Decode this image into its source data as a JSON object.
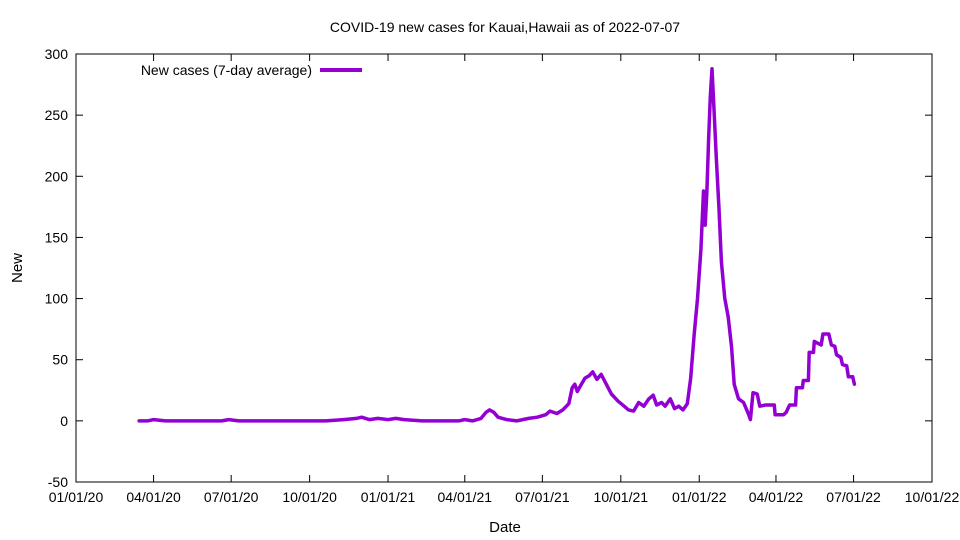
{
  "chart_data": {
    "type": "line",
    "title": "COVID-19 new cases for Kauai,Hawaii as of 2022-07-07",
    "xlabel": "Date",
    "ylabel": "New",
    "x_type": "date",
    "xlim": [
      "2020-01-01",
      "2022-10-01"
    ],
    "ylim": [
      -50,
      300
    ],
    "y_ticks": [
      -50,
      0,
      50,
      100,
      150,
      200,
      250,
      300
    ],
    "x_ticks": [
      {
        "date": "2020-01-01",
        "label": "01/01/20"
      },
      {
        "date": "2020-04-01",
        "label": "04/01/20"
      },
      {
        "date": "2020-07-01",
        "label": "07/01/20"
      },
      {
        "date": "2020-10-01",
        "label": "10/01/20"
      },
      {
        "date": "2021-01-01",
        "label": "01/01/21"
      },
      {
        "date": "2021-04-01",
        "label": "04/01/21"
      },
      {
        "date": "2021-07-01",
        "label": "07/01/21"
      },
      {
        "date": "2021-10-01",
        "label": "10/01/21"
      },
      {
        "date": "2022-01-01",
        "label": "01/01/22"
      },
      {
        "date": "2022-04-01",
        "label": "04/01/22"
      },
      {
        "date": "2022-07-01",
        "label": "07/01/22"
      },
      {
        "date": "2022-10-01",
        "label": "10/01/22"
      }
    ],
    "grid": false,
    "legend_position": "top-left",
    "series": [
      {
        "name": "New cases (7-day average)",
        "color": "#9400d3",
        "points": [
          [
            "2020-03-15",
            0
          ],
          [
            "2020-03-25",
            0
          ],
          [
            "2020-04-01",
            1
          ],
          [
            "2020-04-15",
            0
          ],
          [
            "2020-05-01",
            0
          ],
          [
            "2020-06-01",
            0
          ],
          [
            "2020-06-20",
            0
          ],
          [
            "2020-06-28",
            1
          ],
          [
            "2020-07-10",
            0
          ],
          [
            "2020-08-01",
            0
          ],
          [
            "2020-08-20",
            0
          ],
          [
            "2020-09-10",
            0
          ],
          [
            "2020-10-01",
            0
          ],
          [
            "2020-10-20",
            0
          ],
          [
            "2020-11-10",
            1
          ],
          [
            "2020-11-25",
            2
          ],
          [
            "2020-12-01",
            3
          ],
          [
            "2020-12-10",
            1
          ],
          [
            "2020-12-20",
            2
          ],
          [
            "2021-01-01",
            1
          ],
          [
            "2021-01-10",
            2
          ],
          [
            "2021-01-20",
            1
          ],
          [
            "2021-02-10",
            0
          ],
          [
            "2021-03-10",
            0
          ],
          [
            "2021-03-25",
            0
          ],
          [
            "2021-04-01",
            1
          ],
          [
            "2021-04-10",
            0
          ],
          [
            "2021-04-20",
            2
          ],
          [
            "2021-04-26",
            7
          ],
          [
            "2021-04-30",
            9
          ],
          [
            "2021-05-05",
            7
          ],
          [
            "2021-05-10",
            3
          ],
          [
            "2021-05-20",
            1
          ],
          [
            "2021-06-01",
            0
          ],
          [
            "2021-06-15",
            2
          ],
          [
            "2021-06-25",
            3
          ],
          [
            "2021-07-05",
            5
          ],
          [
            "2021-07-10",
            8
          ],
          [
            "2021-07-18",
            6
          ],
          [
            "2021-07-25",
            9
          ],
          [
            "2021-08-01",
            14
          ],
          [
            "2021-08-05",
            27
          ],
          [
            "2021-08-08",
            30
          ],
          [
            "2021-08-11",
            24
          ],
          [
            "2021-08-15",
            29
          ],
          [
            "2021-08-20",
            35
          ],
          [
            "2021-08-25",
            37
          ],
          [
            "2021-08-29",
            40
          ],
          [
            "2021-09-03",
            34
          ],
          [
            "2021-09-08",
            38
          ],
          [
            "2021-09-14",
            30
          ],
          [
            "2021-09-20",
            22
          ],
          [
            "2021-09-28",
            16
          ],
          [
            "2021-10-05",
            12
          ],
          [
            "2021-10-10",
            9
          ],
          [
            "2021-10-16",
            8
          ],
          [
            "2021-10-22",
            15
          ],
          [
            "2021-10-28",
            12
          ],
          [
            "2021-11-03",
            18
          ],
          [
            "2021-11-08",
            21
          ],
          [
            "2021-11-12",
            13
          ],
          [
            "2021-11-18",
            15
          ],
          [
            "2021-11-22",
            12
          ],
          [
            "2021-11-28",
            18
          ],
          [
            "2021-12-03",
            10
          ],
          [
            "2021-12-08",
            12
          ],
          [
            "2021-12-13",
            9
          ],
          [
            "2021-12-18",
            14
          ],
          [
            "2021-12-22",
            35
          ],
          [
            "2021-12-26",
            70
          ],
          [
            "2021-12-30",
            100
          ],
          [
            "2022-01-03",
            140
          ],
          [
            "2022-01-06",
            188
          ],
          [
            "2022-01-08",
            160
          ],
          [
            "2022-01-10",
            188
          ],
          [
            "2022-01-12",
            230
          ],
          [
            "2022-01-14",
            265
          ],
          [
            "2022-01-16",
            288
          ],
          [
            "2022-01-18",
            260
          ],
          [
            "2022-01-21",
            215
          ],
          [
            "2022-01-24",
            175
          ],
          [
            "2022-01-27",
            130
          ],
          [
            "2022-01-31",
            100
          ],
          [
            "2022-02-04",
            85
          ],
          [
            "2022-02-08",
            60
          ],
          [
            "2022-02-11",
            30
          ],
          [
            "2022-02-16",
            18
          ],
          [
            "2022-02-22",
            15
          ],
          [
            "2022-02-28",
            5
          ],
          [
            "2022-03-02",
            1
          ],
          [
            "2022-03-05",
            23
          ],
          [
            "2022-03-10",
            22
          ],
          [
            "2022-03-13",
            12
          ],
          [
            "2022-03-20",
            13
          ],
          [
            "2022-03-30",
            13
          ],
          [
            "2022-03-31",
            5
          ],
          [
            "2022-04-10",
            5
          ],
          [
            "2022-04-13",
            7
          ],
          [
            "2022-04-17",
            13
          ],
          [
            "2022-04-24",
            13
          ],
          [
            "2022-04-25",
            27
          ],
          [
            "2022-05-02",
            27
          ],
          [
            "2022-05-03",
            33
          ],
          [
            "2022-05-09",
            33
          ],
          [
            "2022-05-10",
            56
          ],
          [
            "2022-05-15",
            56
          ],
          [
            "2022-05-16",
            65
          ],
          [
            "2022-05-24",
            62
          ],
          [
            "2022-05-26",
            71
          ],
          [
            "2022-06-02",
            71
          ],
          [
            "2022-06-05",
            62
          ],
          [
            "2022-06-09",
            61
          ],
          [
            "2022-06-11",
            54
          ],
          [
            "2022-06-16",
            52
          ],
          [
            "2022-06-18",
            46
          ],
          [
            "2022-06-23",
            45
          ],
          [
            "2022-06-25",
            36
          ],
          [
            "2022-06-30",
            36
          ],
          [
            "2022-07-02",
            30
          ]
        ]
      }
    ]
  }
}
